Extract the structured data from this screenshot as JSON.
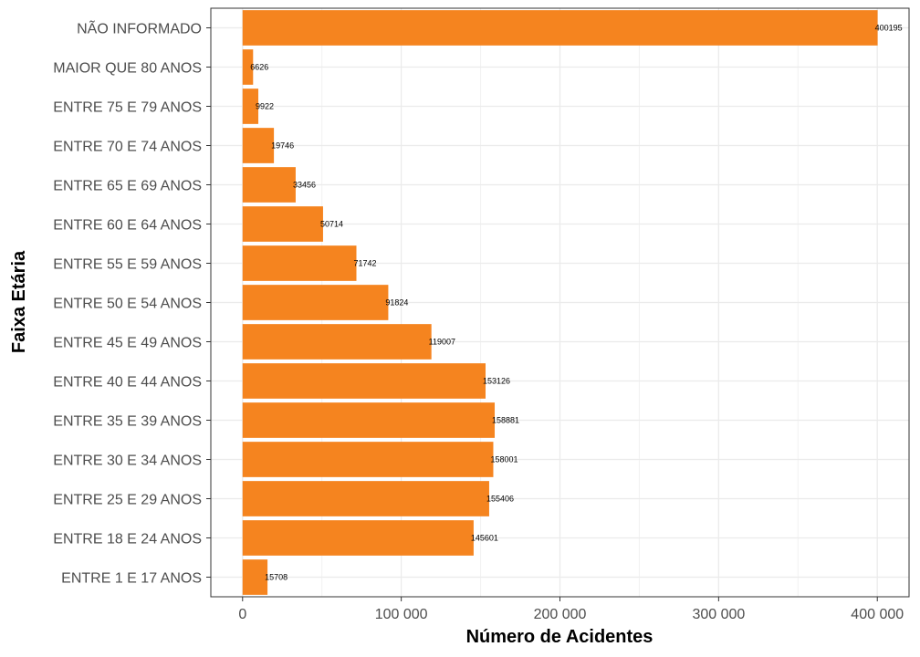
{
  "chart_data": {
    "type": "bar",
    "orientation": "horizontal",
    "categories": [
      "NÃO INFORMADO",
      "MAIOR QUE 80 ANOS",
      "ENTRE 75 E 79 ANOS",
      "ENTRE 70 E 74 ANOS",
      "ENTRE 65 E 69 ANOS",
      "ENTRE 60 E 64 ANOS",
      "ENTRE 55 E 59 ANOS",
      "ENTRE 50 E 54 ANOS",
      "ENTRE 45 E 49 ANOS",
      "ENTRE 40 E 44 ANOS",
      "ENTRE 35 E 39 ANOS",
      "ENTRE 30 E 34 ANOS",
      "ENTRE 25 E 29 ANOS",
      "ENTRE 18 E 24 ANOS",
      "ENTRE 1 E 17 ANOS"
    ],
    "values": [
      400195,
      6626,
      9922,
      19746,
      33456,
      50714,
      71742,
      91824,
      119007,
      153126,
      158881,
      158001,
      155406,
      145601,
      15708
    ],
    "data_labels": [
      "400195",
      "6626",
      "9922",
      "19746",
      "33456",
      "50714",
      "71742",
      "91824",
      "119007",
      "153126",
      "158881",
      "158001",
      "155406",
      "145601",
      "15708"
    ],
    "xlabel": "Número de Acidentes",
    "ylabel": "Faixa Etária",
    "xlim": [
      -20000,
      420000
    ],
    "x_ticks": [
      0,
      100000,
      200000,
      300000,
      400000
    ],
    "x_tick_labels": [
      "0",
      "100 000",
      "200 000",
      "300 000",
      "400 000"
    ],
    "grid": true,
    "bar_color": "#F5841F"
  }
}
